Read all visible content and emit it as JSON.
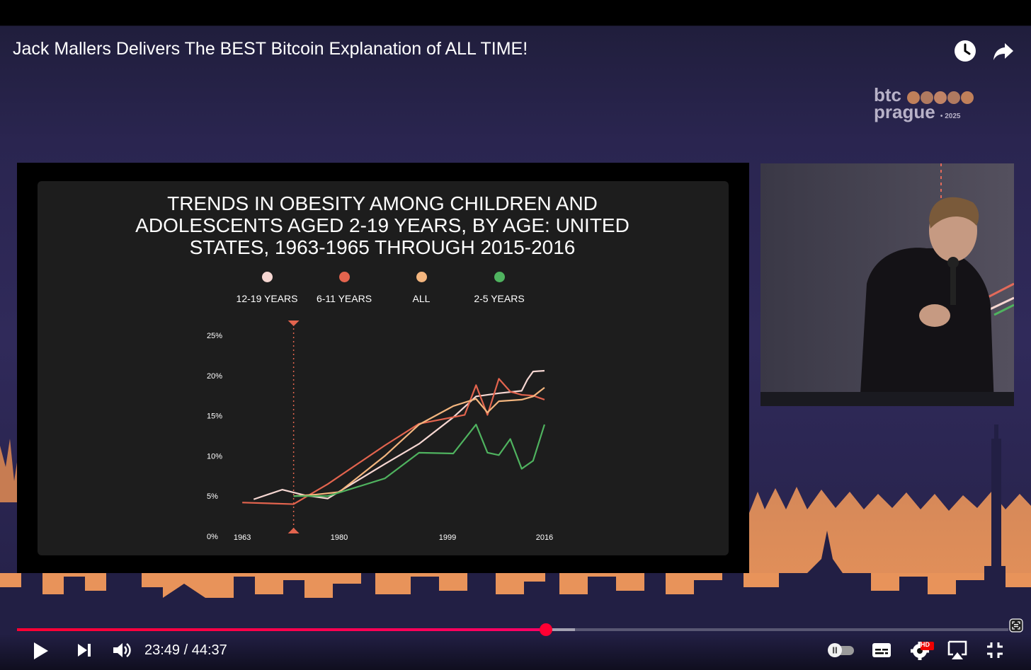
{
  "video": {
    "title": "Jack Mallers Delivers The BEST Bitcoin Explanation of ALL TIME!",
    "current_time": "23:49",
    "separator": " / ",
    "duration": "44:37",
    "played_fraction": 0.5335,
    "buffered_fraction": 0.563
  },
  "brand": {
    "line1": "btc",
    "line2": "prague",
    "year": "• 2025"
  },
  "colors": {
    "accent_red": "#ff0033",
    "brand_orange": "#e8935a"
  },
  "icons": {
    "watch_later": "clock-icon",
    "share": "share-arrow-icon",
    "play": "play-icon",
    "next": "next-icon",
    "volume": "volume-icon",
    "autoplay": "autoplay-toggle-icon",
    "subtitles": "subtitles-icon",
    "settings": "settings-gear-icon",
    "hd_badge": "HD",
    "airplay": "airplay-icon",
    "exit_fullscreen": "exit-fullscreen-icon",
    "screenshot": "screenshot-icon"
  },
  "slide": {
    "title": "TRENDS IN OBESITY AMONG CHILDREN AND ADOLESCENTS AGED 2-19 YEARS, BY AGE: UNITED STATES, 1963-1965 THROUGH 2015-2016",
    "legend": [
      {
        "label": "12-19 YEARS",
        "color": "#f6d7d2"
      },
      {
        "label": "6-11 YEARS",
        "color": "#e3644e"
      },
      {
        "label": "ALL",
        "color": "#f3b57e"
      },
      {
        "label": "2-5 YEARS",
        "color": "#4fb35f"
      }
    ]
  },
  "chart_data": {
    "type": "line",
    "title": "TRENDS IN OBESITY AMONG CHILDREN AND ADOLESCENTS AGED 2-19 YEARS, BY AGE: UNITED STATES, 1963-1965 THROUGH 2015-2016",
    "y_ticks": [
      "25%",
      "20%",
      "15%",
      "10%",
      "5%",
      "0%"
    ],
    "x_ticks": [
      "1963",
      "1980",
      "1999",
      "2016"
    ],
    "x_tick_values": [
      1963,
      1980,
      1999,
      2016
    ],
    "ylim": [
      0,
      25
    ],
    "xlim": [
      1960,
      2017
    ],
    "grid": false,
    "legend_position": "top",
    "marker_year": 1972,
    "series": [
      {
        "name": "12-19 YEARS",
        "color": "#f6d7d2",
        "x": [
          1965,
          1970,
          1974,
          1978,
          1988,
          1994,
          2000,
          2004,
          2008,
          2012,
          2013,
          2014,
          2016
        ],
        "y": [
          4.6,
          5.8,
          5.1,
          4.7,
          9.0,
          11.5,
          14.8,
          17.4,
          17.8,
          18.1,
          19.5,
          20.5,
          20.6
        ]
      },
      {
        "name": "6-11 YEARS",
        "color": "#e3644e",
        "x": [
          1963,
          1972,
          1978,
          1988,
          1994,
          2002,
          2004,
          2006,
          2008,
          2010,
          2012,
          2014,
          2016
        ],
        "y": [
          4.2,
          4.0,
          6.5,
          11.3,
          14.0,
          15.1,
          18.8,
          15.1,
          19.6,
          18.0,
          17.6,
          17.5,
          17.0
        ]
      },
      {
        "name": "ALL",
        "color": "#f3b57e",
        "x": [
          1972,
          1976,
          1980,
          1988,
          1994,
          2000,
          2004,
          2006,
          2008,
          2010,
          2012,
          2014,
          2016
        ],
        "y": [
          5.0,
          5.2,
          5.5,
          10.0,
          13.9,
          16.2,
          17.1,
          15.4,
          16.8,
          16.9,
          17.0,
          17.4,
          18.5
        ]
      },
      {
        "name": "2-5 YEARS",
        "color": "#4fb35f",
        "x": [
          1972,
          1978,
          1988,
          1994,
          2000,
          2004,
          2006,
          2008,
          2010,
          2012,
          2014,
          2016
        ],
        "y": [
          5.0,
          5.0,
          7.2,
          10.4,
          10.3,
          13.9,
          10.4,
          10.1,
          12.1,
          8.4,
          9.4,
          13.9
        ]
      }
    ]
  }
}
